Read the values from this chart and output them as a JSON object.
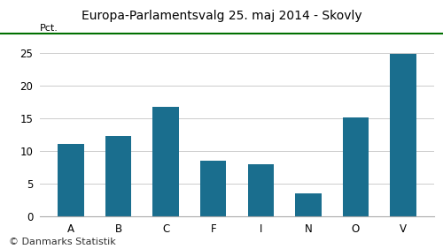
{
  "title": "Europa-Parlamentsvalg 25. maj 2014 - Skovly",
  "categories": [
    "A",
    "B",
    "C",
    "F",
    "I",
    "N",
    "O",
    "V"
  ],
  "values": [
    11.1,
    12.3,
    16.8,
    8.5,
    8.0,
    3.5,
    15.1,
    24.8
  ],
  "bar_color": "#1a6e8e",
  "ylabel": "Pct.",
  "ylim": [
    0,
    27
  ],
  "yticks": [
    0,
    5,
    10,
    15,
    20,
    25
  ],
  "footer": "© Danmarks Statistik",
  "title_color": "#000000",
  "background_color": "#ffffff",
  "grid_color": "#cccccc",
  "title_line_color": "#007000",
  "title_fontsize": 10,
  "footer_fontsize": 8,
  "ylabel_fontsize": 8,
  "tick_fontsize": 8.5
}
